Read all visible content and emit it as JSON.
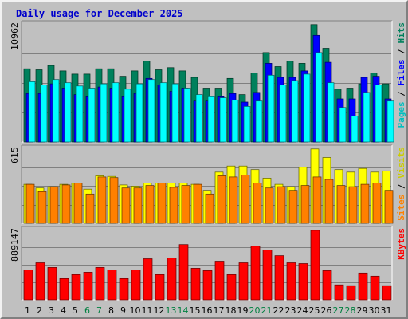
{
  "chart_data": {
    "type": "bar",
    "title": "Daily usage for December 2025",
    "categories": [
      "1",
      "2",
      "3",
      "4",
      "5",
      "6",
      "7",
      "8",
      "9",
      "10",
      "11",
      "12",
      "13",
      "14",
      "15",
      "16",
      "17",
      "18",
      "19",
      "20",
      "21",
      "22",
      "23",
      "24",
      "25",
      "26",
      "27",
      "28",
      "29",
      "30",
      "31"
    ],
    "weekend_days": [
      "6",
      "7",
      "13",
      "14",
      "20",
      "21",
      "27",
      "28"
    ],
    "colors": {
      "hits": "#00805c",
      "files": "#0000ff",
      "pages": "#00ffff",
      "visits": "#ffff00",
      "sites": "#ff8000",
      "kbytes": "#ff0000",
      "weekday_label": "#000000",
      "weekend_label": "#008040"
    },
    "panels": [
      {
        "id": "hits",
        "ymax_label": "10962",
        "ylim": [
          0,
          10962
        ],
        "legend": [
          {
            "text": "Pages",
            "color": "#00c0c0"
          },
          {
            "text": " / ",
            "color": "#000000"
          },
          {
            "text": "Files",
            "color": "#0000ff"
          },
          {
            "text": " / ",
            "color": "#000000"
          },
          {
            "text": "Hits",
            "color": "#00805c"
          }
        ],
        "series": [
          {
            "name": "Hits",
            "color": "#00805c",
            "values": [
              6800,
              6700,
              7100,
              6600,
              6300,
              6300,
              6800,
              6800,
              6100,
              6600,
              7500,
              6700,
              6900,
              6600,
              6000,
              5000,
              5000,
              5900,
              4400,
              6400,
              8300,
              7000,
              7500,
              7300,
              10900,
              8700,
              4900,
              5000,
              5400,
              6400,
              5400
            ]
          },
          {
            "name": "Files",
            "color": "#0000ff",
            "values": [
              4500,
              4500,
              5400,
              5000,
              4400,
              4200,
              5100,
              5000,
              4200,
              4500,
              5900,
              5300,
              4700,
              5000,
              3800,
              3800,
              4200,
              4500,
              3700,
              4600,
              7300,
              6000,
              6000,
              6600,
              9900,
              7400,
              4000,
              4000,
              6000,
              6100,
              4000
            ]
          },
          {
            "name": "Pages",
            "color": "#00ffff",
            "values": [
              5600,
              5300,
              5800,
              5500,
              5200,
              5000,
              5400,
              5500,
              4900,
              5400,
              5800,
              5500,
              5400,
              5000,
              4400,
              4200,
              4100,
              3900,
              3300,
              3800,
              6200,
              5300,
              5700,
              6300,
              8300,
              5500,
              3200,
              2400,
              4600,
              5300,
              3800
            ]
          }
        ]
      },
      {
        "id": "visits",
        "ymax_label": "615",
        "ylim": [
          0,
          615
        ],
        "legend": [
          {
            "text": "Sites",
            "color": "#ff8000"
          },
          {
            "text": " / ",
            "color": "#000000"
          },
          {
            "text": "Visits",
            "color": "#cccc00"
          }
        ],
        "series": [
          {
            "name": "Visits",
            "color": "#ffff00",
            "values": [
              320,
              290,
              300,
              320,
              330,
              280,
              390,
              385,
              315,
              305,
              330,
              330,
              330,
              330,
              320,
              270,
              420,
              470,
              470,
              440,
              370,
              320,
              300,
              460,
              610,
              540,
              440,
              420,
              450,
              420,
              430
            ]
          },
          {
            "name": "Sites",
            "color": "#ff8000",
            "values": [
              320,
              260,
              300,
              315,
              330,
              240,
              380,
              375,
              290,
              290,
              310,
              330,
              295,
              310,
              320,
              240,
              390,
              380,
              395,
              330,
              290,
              300,
              270,
              310,
              380,
              360,
              310,
              300,
              320,
              330,
              270
            ]
          }
        ]
      },
      {
        "id": "kbytes",
        "ymax_label": "889147",
        "ylim": [
          0,
          889147
        ],
        "legend": [
          {
            "text": "KBytes",
            "color": "#ff0000"
          }
        ],
        "series": [
          {
            "name": "KBytes",
            "color": "#ff0000",
            "values": [
              380000,
              470000,
              410000,
              270000,
              320000,
              350000,
              410000,
              380000,
              270000,
              380000,
              520000,
              320000,
              530000,
              700000,
              400000,
              370000,
              490000,
              320000,
              470000,
              680000,
              630000,
              560000,
              470000,
              460000,
              880000,
              370000,
              190000,
              180000,
              340000,
              300000,
              180000
            ]
          }
        ]
      }
    ]
  }
}
